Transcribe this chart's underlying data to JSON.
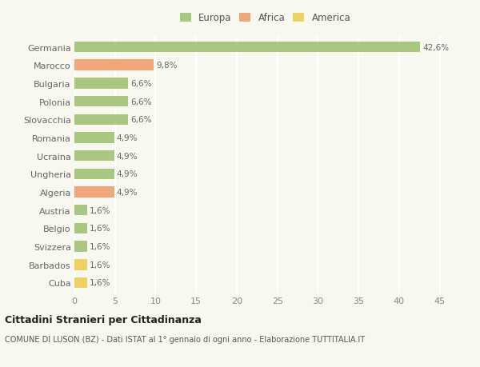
{
  "categories": [
    "Cuba",
    "Barbados",
    "Svizzera",
    "Belgio",
    "Austria",
    "Algeria",
    "Ungheria",
    "Ucraina",
    "Romania",
    "Slovacchia",
    "Polonia",
    "Bulgaria",
    "Marocco",
    "Germania"
  ],
  "values": [
    1.6,
    1.6,
    1.6,
    1.6,
    1.6,
    4.9,
    4.9,
    4.9,
    4.9,
    6.6,
    6.6,
    6.6,
    9.8,
    42.6
  ],
  "labels": [
    "1,6%",
    "1,6%",
    "1,6%",
    "1,6%",
    "1,6%",
    "4,9%",
    "4,9%",
    "4,9%",
    "4,9%",
    "6,6%",
    "6,6%",
    "6,6%",
    "9,8%",
    "42,6%"
  ],
  "colors": [
    "#f0d060",
    "#f0d060",
    "#a8c880",
    "#a8c880",
    "#a8c880",
    "#f0a878",
    "#a8c880",
    "#a8c880",
    "#a8c880",
    "#a8c880",
    "#a8c880",
    "#a8c880",
    "#f0a878",
    "#a8c880"
  ],
  "legend_labels": [
    "Europa",
    "Africa",
    "America"
  ],
  "legend_colors": [
    "#a8c880",
    "#f0a878",
    "#f0d060"
  ],
  "title": "Cittadini Stranieri per Cittadinanza",
  "subtitle": "COMUNE DI LUSON (BZ) - Dati ISTAT al 1° gennaio di ogni anno - Elaborazione TUTTITALIA.IT",
  "xlim": [
    0,
    47
  ],
  "xticks": [
    0,
    5,
    10,
    15,
    20,
    25,
    30,
    35,
    40,
    45
  ],
  "background_color": "#f8f8f0",
  "grid_color": "#ffffff",
  "bar_height": 0.6
}
